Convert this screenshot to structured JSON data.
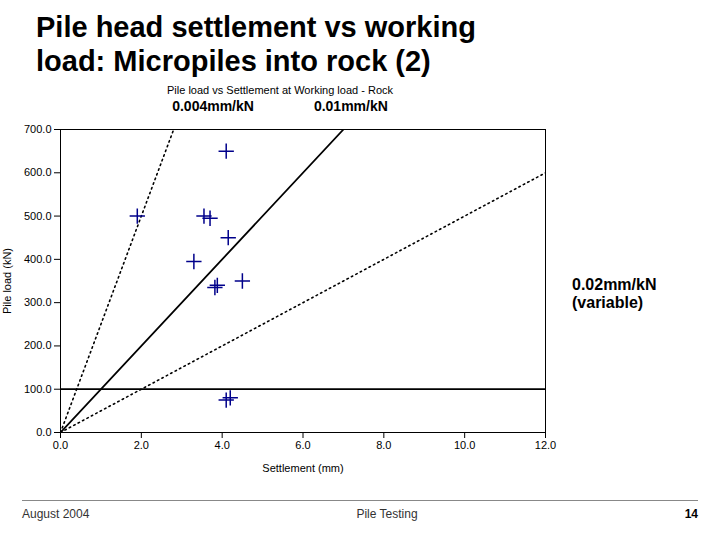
{
  "chart_data": {
    "type": "scatter",
    "title": "Pile head settlement vs working\nload: Micropiles into rock (2)",
    "subtitle": "Pile load vs Settlement at Working load - Rock",
    "annotations": [
      "0.004mm/kN",
      "0.01mm/kN",
      "0.02mm/kN\n(variable)"
    ],
    "footer": [
      "August 2004",
      "Pile Testing",
      "14"
    ],
    "xlabel": "Settlement (mm)",
    "ylabel": "Pile load (kN)",
    "xlim": [
      0.0,
      12.0
    ],
    "ylim": [
      0.0,
      700.0
    ],
    "xticks": [
      {
        "value": 0,
        "label": "0.0"
      },
      {
        "value": 2,
        "label": "2.0"
      },
      {
        "value": 4,
        "label": "4.0"
      },
      {
        "value": 6,
        "label": "6.0"
      },
      {
        "value": 8,
        "label": "8.0"
      },
      {
        "value": 10,
        "label": "10.0"
      },
      {
        "value": 12,
        "label": "12.0"
      }
    ],
    "yticks": [
      {
        "value": 0,
        "label": "0.0"
      },
      {
        "value": 100,
        "label": "100.0"
      },
      {
        "value": 200,
        "label": "200.0"
      },
      {
        "value": 300,
        "label": "300.0"
      },
      {
        "value": 400,
        "label": "400.0"
      },
      {
        "value": 500,
        "label": "500.0"
      },
      {
        "value": 600,
        "label": "600.0"
      },
      {
        "value": 700,
        "label": "700.0"
      }
    ],
    "grid": false,
    "series": [
      {
        "type": "line",
        "color": "#000000",
        "line_style": "solid",
        "x": [
          0,
          7
        ],
        "values": [
          0,
          700
        ]
      },
      {
        "type": "line",
        "color": "#000000",
        "line_style": "dotted",
        "x": [
          0,
          2.8
        ],
        "values": [
          0,
          700
        ]
      },
      {
        "type": "line",
        "color": "#000000",
        "line_style": "dotted",
        "x": [
          0,
          12
        ],
        "values": [
          0,
          600
        ]
      },
      {
        "type": "line",
        "color": "#000000",
        "line_style": "solid",
        "x": [
          0,
          12
        ],
        "values": [
          100,
          100
        ]
      },
      {
        "type": "scatter",
        "color": "#00008B",
        "marker": "plus",
        "x": [
          1.9,
          3.3,
          3.55,
          3.7,
          3.82,
          3.88,
          4.1,
          4.15,
          4.5,
          4.1,
          4.2
        ],
        "values": [
          500,
          395,
          500,
          495,
          335,
          340,
          650,
          450,
          350,
          75,
          80
        ]
      }
    ]
  }
}
